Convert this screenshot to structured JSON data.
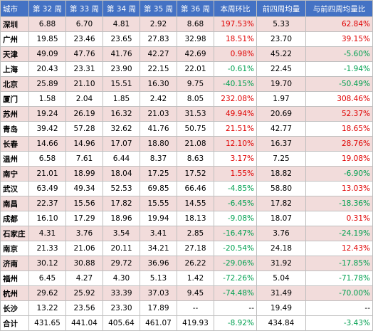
{
  "headers": [
    "城市",
    "第 32 周",
    "第 33 周",
    "第 34 周",
    "第 35 周",
    "第 36 周",
    "本周环比",
    "前四周均量",
    "与前四周均量比"
  ],
  "rows": [
    {
      "city": "深圳",
      "w32": "6.88",
      "w33": "6.70",
      "w34": "4.81",
      "w35": "2.92",
      "w36": "8.68",
      "wow": "197.53%",
      "avg4": "5.33",
      "vsavg": "62.84%"
    },
    {
      "city": "广州",
      "w32": "19.85",
      "w33": "23.46",
      "w34": "23.65",
      "w35": "27.83",
      "w36": "32.98",
      "wow": "18.51%",
      "avg4": "23.70",
      "vsavg": "39.15%"
    },
    {
      "city": "天津",
      "w32": "49.09",
      "w33": "47.76",
      "w34": "41.76",
      "w35": "42.27",
      "w36": "42.69",
      "wow": "0.98%",
      "avg4": "45.22",
      "vsavg": "-5.60%"
    },
    {
      "city": "上海",
      "w32": "20.43",
      "w33": "23.31",
      "w34": "23.90",
      "w35": "22.15",
      "w36": "22.01",
      "wow": "-0.61%",
      "avg4": "22.45",
      "vsavg": "-1.94%"
    },
    {
      "city": "北京",
      "w32": "25.89",
      "w33": "21.10",
      "w34": "15.51",
      "w35": "16.30",
      "w36": "9.75",
      "wow": "-40.15%",
      "avg4": "19.70",
      "vsavg": "-50.49%"
    },
    {
      "city": "厦门",
      "w32": "1.58",
      "w33": "2.04",
      "w34": "1.85",
      "w35": "2.42",
      "w36": "8.05",
      "wow": "232.08%",
      "avg4": "1.97",
      "vsavg": "308.46%"
    },
    {
      "city": "苏州",
      "w32": "19.24",
      "w33": "26.19",
      "w34": "16.32",
      "w35": "21.03",
      "w36": "31.53",
      "wow": "49.94%",
      "avg4": "20.69",
      "vsavg": "52.37%"
    },
    {
      "city": "青岛",
      "w32": "39.42",
      "w33": "57.28",
      "w34": "32.62",
      "w35": "41.76",
      "w36": "50.75",
      "wow": "21.51%",
      "avg4": "42.77",
      "vsavg": "18.65%"
    },
    {
      "city": "长春",
      "w32": "14.66",
      "w33": "14.96",
      "w34": "17.07",
      "w35": "18.80",
      "w36": "21.08",
      "wow": "12.10%",
      "avg4": "16.37",
      "vsavg": "28.76%"
    },
    {
      "city": "温州",
      "w32": "6.58",
      "w33": "7.61",
      "w34": "6.44",
      "w35": "8.37",
      "w36": "8.63",
      "wow": "3.17%",
      "avg4": "7.25",
      "vsavg": "19.08%"
    },
    {
      "city": "南宁",
      "w32": "21.01",
      "w33": "18.99",
      "w34": "18.04",
      "w35": "17.25",
      "w36": "17.52",
      "wow": "1.55%",
      "avg4": "18.82",
      "vsavg": "-6.90%"
    },
    {
      "city": "武汉",
      "w32": "63.49",
      "w33": "49.34",
      "w34": "52.53",
      "w35": "69.85",
      "w36": "66.46",
      "wow": "-4.85%",
      "avg4": "58.80",
      "vsavg": "13.03%"
    },
    {
      "city": "南昌",
      "w32": "22.37",
      "w33": "15.56",
      "w34": "17.82",
      "w35": "15.55",
      "w36": "14.55",
      "wow": "-6.45%",
      "avg4": "17.82",
      "vsavg": "-18.36%"
    },
    {
      "city": "成都",
      "w32": "16.10",
      "w33": "17.29",
      "w34": "18.96",
      "w35": "19.94",
      "w36": "18.13",
      "wow": "-9.08%",
      "avg4": "18.07",
      "vsavg": "0.31%"
    },
    {
      "city": "石家庄",
      "w32": "4.31",
      "w33": "3.76",
      "w34": "3.54",
      "w35": "3.41",
      "w36": "2.85",
      "wow": "-16.47%",
      "avg4": "3.76",
      "vsavg": "-24.19%"
    },
    {
      "city": "南京",
      "w32": "21.33",
      "w33": "21.06",
      "w34": "20.11",
      "w35": "34.21",
      "w36": "27.18",
      "wow": "-20.54%",
      "avg4": "24.18",
      "vsavg": "12.43%"
    },
    {
      "city": "济南",
      "w32": "30.12",
      "w33": "30.88",
      "w34": "29.72",
      "w35": "36.96",
      "w36": "26.22",
      "wow": "-29.06%",
      "avg4": "31.92",
      "vsavg": "-17.85%"
    },
    {
      "city": "福州",
      "w32": "6.45",
      "w33": "4.27",
      "w34": "4.30",
      "w35": "5.13",
      "w36": "1.42",
      "wow": "-72.26%",
      "avg4": "5.04",
      "vsavg": "-71.78%"
    },
    {
      "city": "杭州",
      "w32": "29.62",
      "w33": "25.92",
      "w34": "33.39",
      "w35": "37.03",
      "w36": "9.45",
      "wow": "-74.48%",
      "avg4": "31.49",
      "vsavg": "-70.00%"
    },
    {
      "city": "长沙",
      "w32": "13.22",
      "w33": "23.56",
      "w34": "23.30",
      "w35": "17.89",
      "w36": "--",
      "wow": "--",
      "avg4": "19.49",
      "vsavg": "--"
    }
  ],
  "total": {
    "city": "合计",
    "w32": "431.65",
    "w33": "441.04",
    "w34": "405.64",
    "w35": "461.07",
    "w36": "419.93",
    "wow": "-8.92%",
    "avg4": "434.84",
    "vsavg": "-3.43%"
  }
}
